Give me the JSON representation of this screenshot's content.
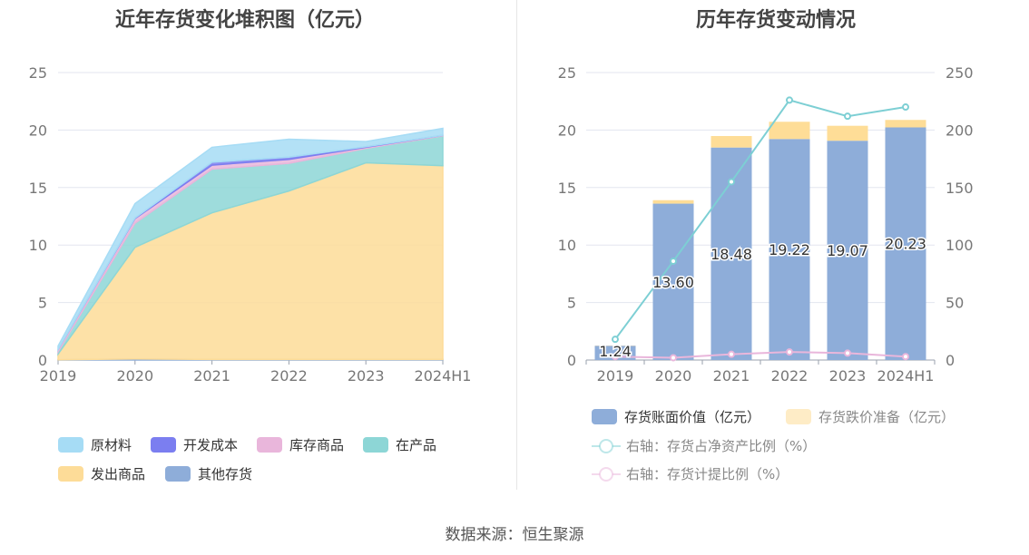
{
  "left_title": "近年存货变化堆积图（亿元）",
  "right_title": "历年存货变动情况",
  "source": "数据来源：恒生聚源",
  "colors": {
    "raw_material": "#a6dcf5",
    "dev_cost": "#7b7ef0",
    "stock_goods": "#e9b6db",
    "wip": "#8dd6d6",
    "shipped_goods": "#fddc98",
    "other": "#8eadd9",
    "book_value": "#8eadd9",
    "impairment": "#fedd97",
    "ratio_net_asset": "#7dcfd4",
    "ratio_provision": "#e9b6db"
  },
  "chart_data": [
    {
      "type": "area",
      "categories": [
        "2019",
        "2020",
        "2021",
        "2022",
        "2023",
        "2024H1"
      ],
      "ylim": [
        0,
        25
      ],
      "yticks": [
        "0",
        "5",
        "10",
        "15",
        "20",
        "25"
      ],
      "stacked": true,
      "series": [
        {
          "name": "其他存货",
          "key": "other",
          "values": [
            0.02,
            0.1,
            0.05,
            0.05,
            0.05,
            0.05
          ]
        },
        {
          "name": "发出商品",
          "key": "shipped_goods",
          "values": [
            0.5,
            9.7,
            12.75,
            14.65,
            17.1,
            16.85
          ]
        },
        {
          "name": "在产品",
          "key": "wip",
          "values": [
            0.2,
            2.1,
            3.8,
            2.4,
            1.25,
            2.6
          ]
        },
        {
          "name": "库存商品",
          "key": "stock_goods",
          "values": [
            0.2,
            0.4,
            0.35,
            0.35,
            0.1,
            0.05
          ]
        },
        {
          "name": "开发成本",
          "key": "dev_cost",
          "values": [
            0.0,
            0.05,
            0.25,
            0.2,
            0.05,
            0.0
          ]
        },
        {
          "name": "原材料",
          "key": "raw_material",
          "values": [
            0.3,
            1.25,
            1.3,
            1.55,
            0.45,
            0.6
          ]
        }
      ],
      "legend": [
        {
          "label": "原材料",
          "key": "raw_material"
        },
        {
          "label": "开发成本",
          "key": "dev_cost"
        },
        {
          "label": "库存商品",
          "key": "stock_goods"
        },
        {
          "label": "在产品",
          "key": "wip"
        },
        {
          "label": "发出商品",
          "key": "shipped_goods"
        },
        {
          "label": "其他存货",
          "key": "other"
        }
      ]
    },
    {
      "type": "bar",
      "categories": [
        "2019",
        "2020",
        "2021",
        "2022",
        "2023",
        "2024H1"
      ],
      "ylim": [
        0,
        25
      ],
      "y2lim": [
        0,
        250
      ],
      "yticks": [
        "0",
        "5",
        "10",
        "15",
        "20",
        "25"
      ],
      "y2ticks": [
        "0",
        "50",
        "100",
        "150",
        "200",
        "250"
      ],
      "stacked": true,
      "series": [
        {
          "name": "存货账面价值（亿元）",
          "key": "book_value",
          "values": [
            1.24,
            13.6,
            18.48,
            19.22,
            19.07,
            20.23
          ],
          "labels": [
            "1.24",
            "13.60",
            "18.48",
            "19.22",
            "19.07",
            "20.23"
          ]
        },
        {
          "name": "存货跌价准备（亿元）",
          "key": "impairment",
          "values": [
            0.02,
            0.3,
            1.0,
            1.5,
            1.3,
            0.65
          ]
        },
        {
          "name": "右轴：存货占净资产比例（%）",
          "key": "ratio_net_asset",
          "type": "line",
          "axis": "right",
          "values": [
            18,
            86,
            155,
            226,
            212,
            220
          ]
        },
        {
          "name": "右轴：存货计提比例（%）",
          "key": "ratio_provision",
          "type": "line",
          "axis": "right",
          "values": [
            3,
            2,
            5,
            7,
            6,
            3
          ]
        }
      ],
      "legend": [
        {
          "label": "存货账面价值（亿元）",
          "key": "book_value",
          "style": "box"
        },
        {
          "label": "存货跌价准备（亿元）",
          "key": "impairment",
          "style": "box"
        },
        {
          "label": "右轴：存货占净资产比例（%）",
          "key": "ratio_net_asset",
          "style": "line"
        },
        {
          "label": "右轴：存货计提比例（%）",
          "key": "ratio_provision",
          "style": "line"
        }
      ]
    }
  ]
}
